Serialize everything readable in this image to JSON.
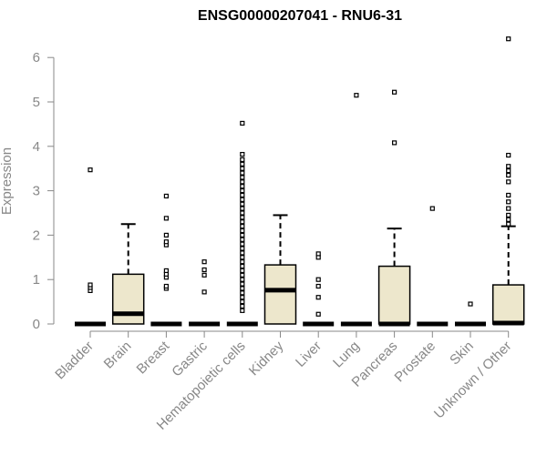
{
  "chart_data": {
    "type": "boxplot",
    "title": "ENSG00000207041 - RNU6-31",
    "xlabel": "",
    "ylabel": "Expression",
    "ylim": [
      0,
      6.5
    ],
    "yticks": [
      0,
      1,
      2,
      3,
      4,
      5,
      6
    ],
    "box_color": "#ede7cc",
    "categories": [
      "Bladder",
      "Brain",
      "Breast",
      "Gastric",
      "Hematopoietic cells",
      "Kidney",
      "Liver",
      "Lung",
      "Pancreas",
      "Prostate",
      "Skin",
      "Unknown / Other"
    ],
    "boxes": [
      {
        "q1": 0,
        "median": 0,
        "q3": 0,
        "whisker_low": 0,
        "whisker_high": 0,
        "outliers": [
          0.75,
          0.82,
          0.88,
          3.47
        ]
      },
      {
        "q1": 0,
        "median": 0.23,
        "q3": 1.12,
        "whisker_low": 0,
        "whisker_high": 2.25,
        "outliers": []
      },
      {
        "q1": 0,
        "median": 0,
        "q3": 0,
        "whisker_low": 0,
        "whisker_high": 0,
        "outliers": [
          0.8,
          0.85,
          1.05,
          1.12,
          1.2,
          1.78,
          1.85,
          2.0,
          2.38,
          2.88
        ]
      },
      {
        "q1": 0,
        "median": 0,
        "q3": 0,
        "whisker_low": 0,
        "whisker_high": 0,
        "outliers": [
          0.72,
          1.1,
          1.22,
          1.4
        ]
      },
      {
        "q1": 0,
        "median": 0,
        "q3": 0,
        "whisker_low": 0,
        "whisker_high": 0,
        "outliers": [
          0.3,
          0.4,
          0.5,
          0.6,
          0.7,
          0.8,
          0.9,
          1.0,
          1.1,
          1.2,
          1.3,
          1.4,
          1.5,
          1.6,
          1.7,
          1.8,
          1.9,
          2.0,
          2.1,
          2.2,
          2.3,
          2.4,
          2.5,
          2.6,
          2.7,
          2.8,
          2.9,
          3.0,
          3.1,
          3.2,
          3.3,
          3.4,
          3.5,
          3.6,
          3.7,
          3.82,
          4.52
        ]
      },
      {
        "q1": 0,
        "median": 0.76,
        "q3": 1.33,
        "whisker_low": 0,
        "whisker_high": 2.45,
        "outliers": []
      },
      {
        "q1": 0,
        "median": 0,
        "q3": 0,
        "whisker_low": 0,
        "whisker_high": 0,
        "outliers": [
          0.22,
          0.6,
          0.85,
          1.0,
          1.5,
          1.58
        ]
      },
      {
        "q1": 0,
        "median": 0,
        "q3": 0,
        "whisker_low": 0,
        "whisker_high": 0,
        "outliers": [
          5.15
        ]
      },
      {
        "q1": 0,
        "median": 0,
        "q3": 1.3,
        "whisker_low": 0,
        "whisker_high": 2.15,
        "outliers": [
          4.08,
          5.22
        ]
      },
      {
        "q1": 0,
        "median": 0,
        "q3": 0,
        "whisker_low": 0,
        "whisker_high": 0,
        "outliers": [
          2.6
        ]
      },
      {
        "q1": 0,
        "median": 0,
        "q3": 0,
        "whisker_low": 0,
        "whisker_high": 0,
        "outliers": [
          0.45
        ]
      },
      {
        "q1": 0,
        "median": 0.02,
        "q3": 0.88,
        "whisker_low": 0,
        "whisker_high": 2.2,
        "outliers": [
          2.25,
          2.35,
          2.45,
          2.6,
          2.75,
          2.9,
          3.2,
          3.35,
          3.45,
          3.55,
          3.8,
          6.42
        ]
      }
    ]
  }
}
